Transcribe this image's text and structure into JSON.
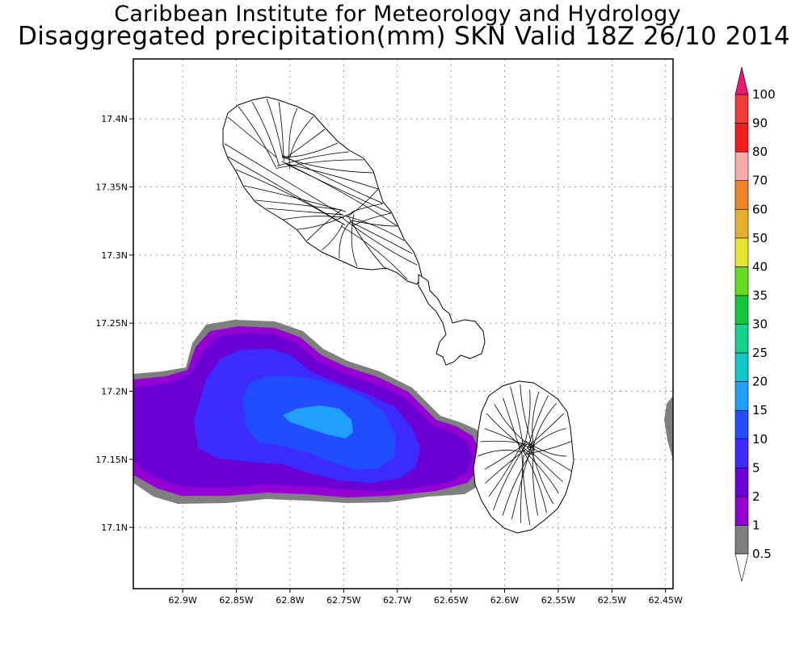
{
  "header": {
    "line1": "Caribbean Institute for Meteorology and Hydrology",
    "line2": "Disaggregated precipitation(mm) SKN Valid 18Z 26/10 2014"
  },
  "map": {
    "lat_ticks": [
      {
        "label": "17.4N",
        "lat": 17.4
      },
      {
        "label": "17.35N",
        "lat": 17.35
      },
      {
        "label": "17.3N",
        "lat": 17.3
      },
      {
        "label": "17.25N",
        "lat": 17.25
      },
      {
        "label": "17.2N",
        "lat": 17.2
      },
      {
        "label": "17.15N",
        "lat": 17.15
      },
      {
        "label": "17.1N",
        "lat": 17.1
      }
    ],
    "lon_ticks": [
      {
        "label": "62.9W",
        "lon": -62.9
      },
      {
        "label": "62.85W",
        "lon": -62.85
      },
      {
        "label": "62.8W",
        "lon": -62.8
      },
      {
        "label": "62.75W",
        "lon": -62.75
      },
      {
        "label": "62.7W",
        "lon": -62.7
      },
      {
        "label": "62.65W",
        "lon": -62.65
      },
      {
        "label": "62.6W",
        "lon": -62.6
      },
      {
        "label": "62.55W",
        "lon": -62.55
      },
      {
        "label": "62.5W",
        "lon": -62.5
      },
      {
        "label": "62.45W",
        "lon": -62.45
      }
    ],
    "extent": {
      "lon_min": -62.946,
      "lon_max": -62.443,
      "lat_min": 17.055,
      "lat_max": 17.444
    }
  },
  "colorbar": {
    "levels": [
      {
        "label": "0.5",
        "color": "#7f7f7f"
      },
      {
        "label": "1",
        "color": "#9400d3"
      },
      {
        "label": "2",
        "color": "#6a00d3"
      },
      {
        "label": "5",
        "color": "#3b2bff"
      },
      {
        "label": "10",
        "color": "#1f4dff"
      },
      {
        "label": "15",
        "color": "#1fa0ff"
      },
      {
        "label": "20",
        "color": "#14c8c8"
      },
      {
        "label": "25",
        "color": "#14d28c"
      },
      {
        "label": "30",
        "color": "#14c83c"
      },
      {
        "label": "35",
        "color": "#64dc1e"
      },
      {
        "label": "40",
        "color": "#e6e632"
      },
      {
        "label": "50",
        "color": "#e6af2d"
      },
      {
        "label": "60",
        "color": "#f08228"
      },
      {
        "label": "70",
        "color": "#faaaaa"
      },
      {
        "label": "80",
        "color": "#f01e1e"
      },
      {
        "label": "90",
        "color": "#f03c3c"
      },
      {
        "label": "100",
        "color": "#e6196e"
      }
    ],
    "top_color": "#e6196e",
    "bottom_color": "#ffffff"
  }
}
